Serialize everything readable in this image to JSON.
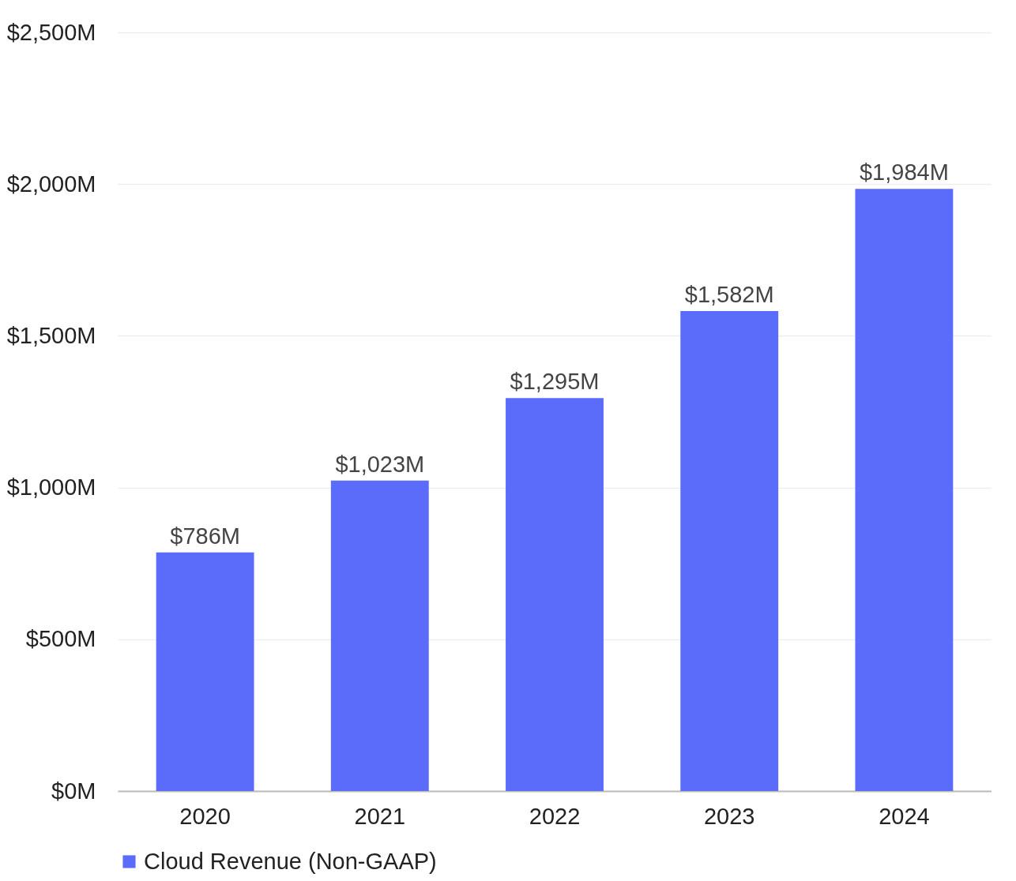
{
  "chart_data": {
    "type": "bar",
    "categories": [
      "2020",
      "2021",
      "2022",
      "2023",
      "2024"
    ],
    "series": [
      {
        "name": "Cloud Revenue (Non-GAAP)",
        "color": "#5b6cfb",
        "values": [
          786,
          1023,
          1295,
          1582,
          1984
        ],
        "value_labels": [
          "$786M",
          "$1,023M",
          "$1,295M",
          "$1,582M",
          "$1,984M"
        ]
      }
    ],
    "ylim": [
      0,
      2500
    ],
    "yticks": [
      {
        "value": 0,
        "label": "$0M"
      },
      {
        "value": 500,
        "label": "$500M"
      },
      {
        "value": 1000,
        "label": "$1,000M"
      },
      {
        "value": 1500,
        "label": "$1,500M"
      },
      {
        "value": 2000,
        "label": "$2,000M"
      },
      {
        "value": 2500,
        "label": "$2,500M"
      }
    ],
    "grid": "y",
    "legend": "bottom"
  }
}
